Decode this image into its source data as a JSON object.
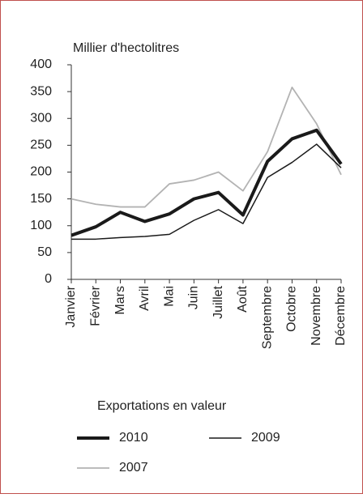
{
  "chart_data": {
    "type": "line",
    "y_label": "Millier d'hectolitres",
    "categories": [
      "Janvier",
      "Février",
      "Mars",
      "Avril",
      "Mai",
      "Juin",
      "Juillet",
      "Août",
      "Septembre",
      "Octobre",
      "Novembre",
      "Décembre"
    ],
    "series": [
      {
        "name": "2010",
        "color": "#1a1a1a",
        "width": 4,
        "values": [
          82,
          98,
          125,
          108,
          122,
          150,
          162,
          120,
          220,
          262,
          278,
          215
        ]
      },
      {
        "name": "2009",
        "color": "#1a1a1a",
        "width": 1.5,
        "values": [
          75,
          75,
          78,
          80,
          84,
          110,
          130,
          104,
          190,
          218,
          252,
          208
        ]
      },
      {
        "name": "2007",
        "color": "#b3b3b3",
        "width": 1.8,
        "values": [
          150,
          140,
          135,
          135,
          178,
          185,
          200,
          165,
          238,
          358,
          290,
          195
        ]
      }
    ],
    "legend_title": "Exportations en valeur",
    "ylim": [
      0,
      400
    ],
    "yticks": [
      0,
      50,
      100,
      150,
      200,
      250,
      300,
      350,
      400
    ]
  }
}
